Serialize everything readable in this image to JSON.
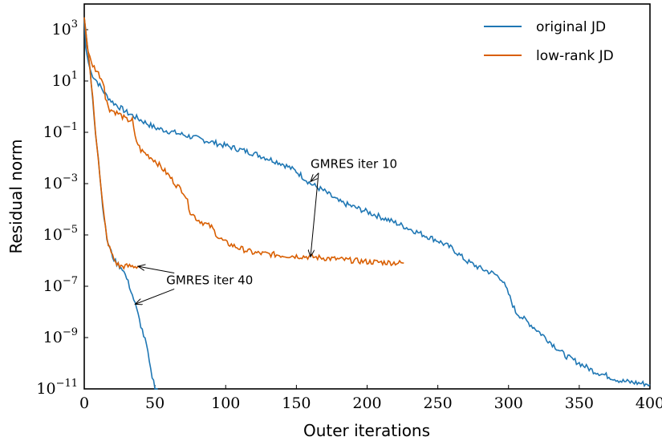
{
  "chart_data": {
    "type": "line",
    "xlabel": "Outer iterations",
    "ylabel": "Residual norm",
    "xlim": [
      0,
      400
    ],
    "ylim_log10": [
      -11,
      4
    ],
    "yscale": "log",
    "grid": false,
    "legend_position": "top-right",
    "x_ticks": [
      "0",
      "50",
      "100",
      "150",
      "200",
      "250",
      "300",
      "350",
      "400"
    ],
    "y_ticks": [
      {
        "base": "10",
        "exp": "3"
      },
      {
        "base": "10",
        "exp": "1"
      },
      {
        "base": "10",
        "exp": "−1"
      },
      {
        "base": "10",
        "exp": "−3"
      },
      {
        "base": "10",
        "exp": "−5"
      },
      {
        "base": "10",
        "exp": "−7"
      },
      {
        "base": "10",
        "exp": "−9"
      },
      {
        "base": "10",
        "exp": "−11"
      }
    ],
    "series": [
      {
        "name": "original JD",
        "color": "#1f77b4",
        "points": [
          [
            0,
            3000
          ],
          [
            1,
            200
          ],
          [
            3,
            50
          ],
          [
            5,
            20
          ],
          [
            10,
            8
          ],
          [
            15,
            3
          ],
          [
            20,
            1.5
          ],
          [
            30,
            0.6
          ],
          [
            40,
            0.3
          ],
          [
            50,
            0.15
          ],
          [
            70,
            0.08
          ],
          [
            100,
            0.03
          ],
          [
            120,
            0.015
          ],
          [
            140,
            0.006
          ],
          [
            150,
            0.003
          ],
          [
            160,
            0.001
          ],
          [
            170,
            0.0005
          ],
          [
            180,
            0.0002
          ],
          [
            200,
            8e-05
          ],
          [
            220,
            3e-05
          ],
          [
            240,
            1e-05
          ],
          [
            250,
            6e-06
          ],
          [
            260,
            3e-06
          ],
          [
            270,
            1e-06
          ],
          [
            280,
            5e-07
          ],
          [
            290,
            3e-07
          ],
          [
            295,
            2e-07
          ],
          [
            300,
            5e-08
          ],
          [
            305,
            1e-08
          ],
          [
            320,
            2e-09
          ],
          [
            340,
            2e-10
          ],
          [
            360,
            5e-11
          ],
          [
            380,
            2e-11
          ],
          [
            400,
            1.5e-11
          ]
        ]
      },
      {
        "name": "low-rank JD",
        "color": "#d95f02",
        "points": [
          [
            0,
            3000
          ],
          [
            2,
            200
          ],
          [
            5,
            50
          ],
          [
            10,
            20
          ],
          [
            14,
            8
          ],
          [
            15,
            2
          ],
          [
            18,
            0.8
          ],
          [
            25,
            0.5
          ],
          [
            30,
            0.3
          ],
          [
            34,
            0.3
          ],
          [
            36,
            0.06
          ],
          [
            40,
            0.02
          ],
          [
            50,
            0.008
          ],
          [
            60,
            0.002
          ],
          [
            65,
            0.0009
          ],
          [
            70,
            0.0005
          ],
          [
            72,
            0.0003
          ],
          [
            75,
            8e-05
          ],
          [
            80,
            4e-05
          ],
          [
            90,
            2e-05
          ],
          [
            95,
            8e-06
          ],
          [
            100,
            5e-06
          ],
          [
            110,
            3e-06
          ],
          [
            120,
            2e-06
          ],
          [
            130,
            1.8e-06
          ],
          [
            140,
            1.6e-06
          ],
          [
            150,
            1.5e-06
          ],
          [
            160,
            1.4e-06
          ],
          [
            200,
            9e-07
          ],
          [
            226,
            8e-07
          ]
        ]
      },
      {
        "name": "",
        "color": "#1f77b4",
        "points": [
          [
            0,
            3000
          ],
          [
            2,
            300
          ],
          [
            4,
            30
          ],
          [
            6,
            2
          ],
          [
            8,
            0.1
          ],
          [
            10,
            0.01
          ],
          [
            12,
            0.0005
          ],
          [
            14,
            5e-05
          ],
          [
            16,
            7e-06
          ],
          [
            18,
            3e-06
          ],
          [
            20,
            1.5e-06
          ],
          [
            22,
            9e-07
          ],
          [
            25,
            6e-07
          ],
          [
            27,
            5e-07
          ],
          [
            30,
            2e-07
          ],
          [
            33,
            7e-08
          ],
          [
            36,
            2e-08
          ],
          [
            40,
            3e-09
          ],
          [
            44,
            5e-10
          ],
          [
            47,
            5e-11
          ],
          [
            50,
            1.2e-11
          ],
          [
            52,
            1e-11
          ]
        ]
      },
      {
        "name": "",
        "color": "#d95f02",
        "points": [
          [
            0,
            3000
          ],
          [
            2,
            300
          ],
          [
            4,
            30
          ],
          [
            6,
            2
          ],
          [
            8,
            0.1
          ],
          [
            10,
            0.01
          ],
          [
            12,
            0.0005
          ],
          [
            14,
            5e-05
          ],
          [
            16,
            7e-06
          ],
          [
            18,
            3e-06
          ],
          [
            20,
            1.5e-06
          ],
          [
            22,
            9e-07
          ],
          [
            25,
            6e-07
          ],
          [
            30,
            6e-07
          ],
          [
            35,
            6e-07
          ],
          [
            40,
            6e-07
          ]
        ]
      }
    ],
    "annotations": [
      {
        "text": "GMRES iter 10",
        "text_x": 160,
        "text_y": 0.004,
        "targets": [
          [
            160,
            0.0012
          ],
          [
            160,
            1.4e-06
          ]
        ]
      },
      {
        "text": "GMRES iter 40",
        "text_x": 58,
        "text_y": 1.2e-07,
        "targets": [
          [
            38,
            6e-07
          ],
          [
            36,
            2e-08
          ]
        ]
      }
    ]
  }
}
